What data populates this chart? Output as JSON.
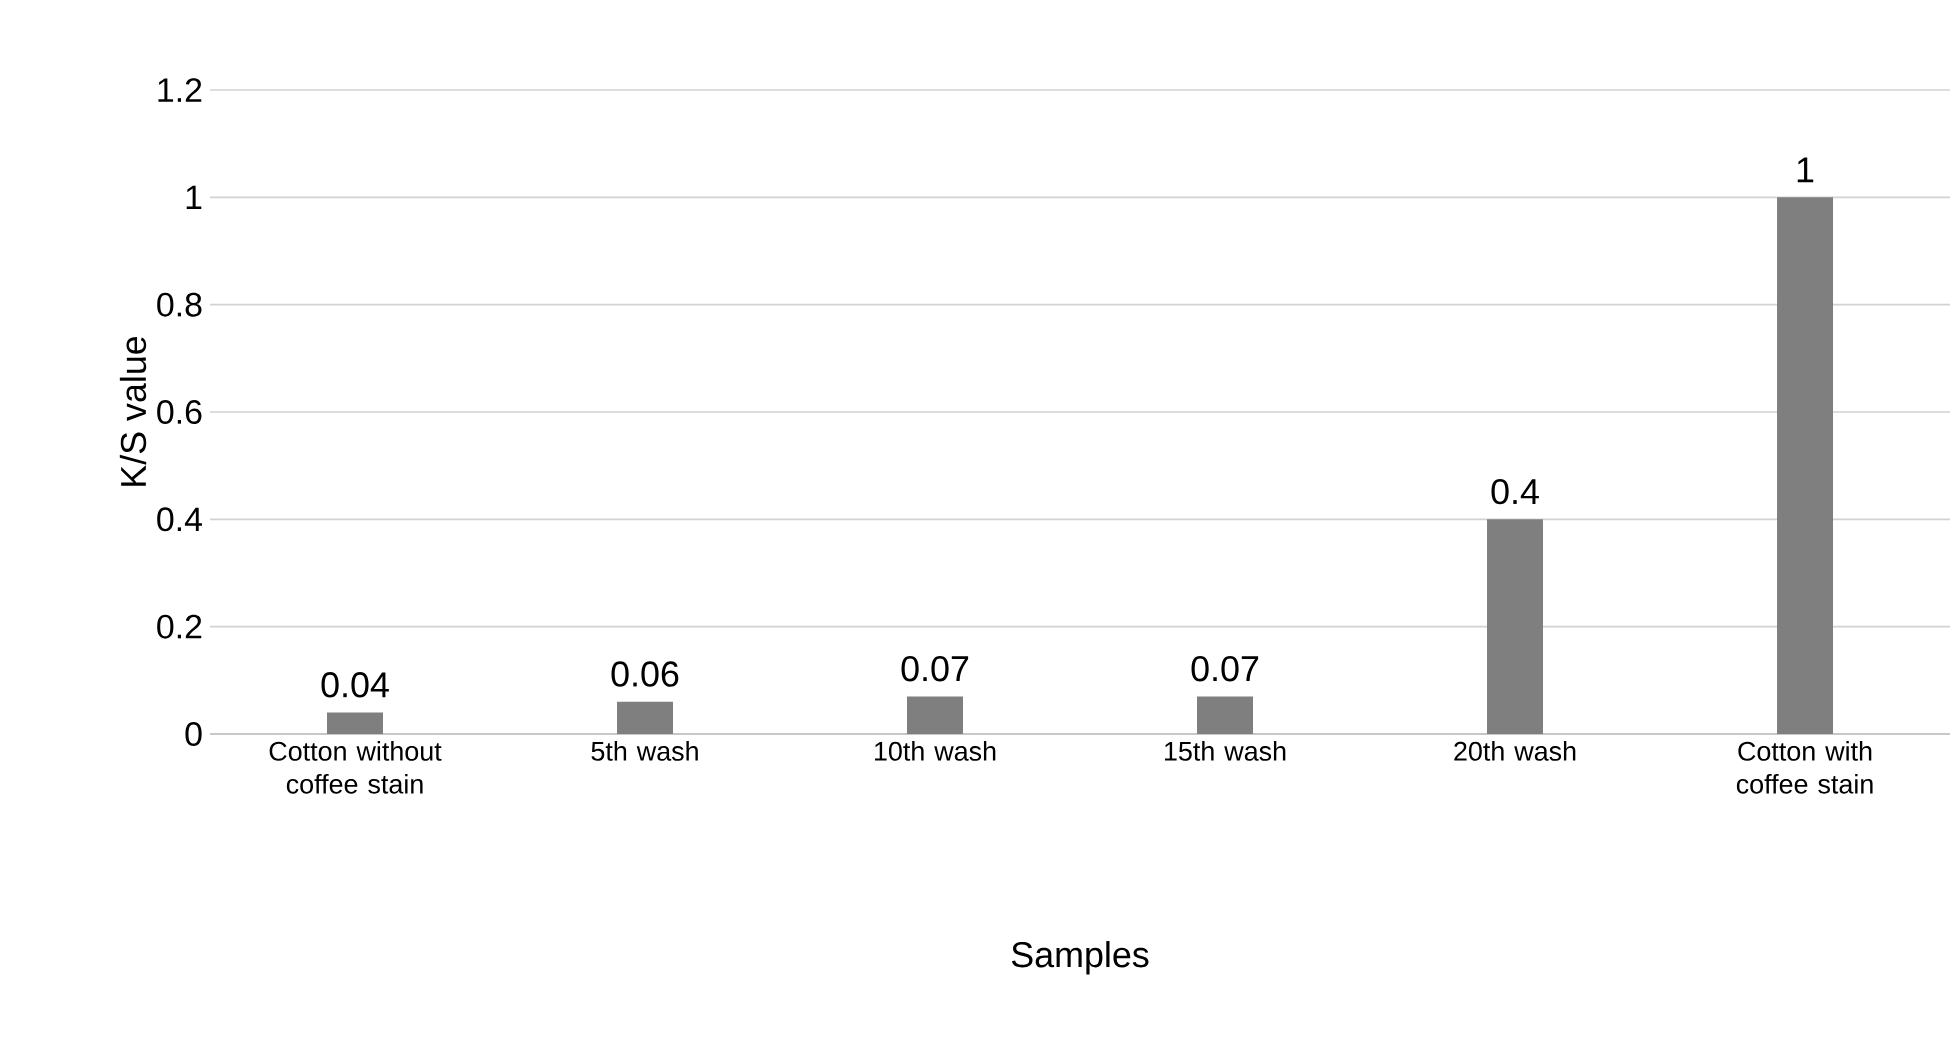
{
  "chart_data": {
    "type": "bar",
    "xlabel": "Samples",
    "ylabel": "K/S value",
    "categories": [
      "Cotton without coffee stain",
      "5th wash",
      "10th wash",
      "15th wash",
      "20th wash",
      "Cotton with coffee stain"
    ],
    "values": [
      0.04,
      0.06,
      0.07,
      0.07,
      0.4,
      1
    ],
    "color": "#7f7f7f",
    "ylim": [
      0,
      1.2
    ],
    "yticks": [
      0,
      0.2,
      0.4,
      0.6,
      0.8,
      1,
      1.2
    ],
    "grid": "y",
    "data_labels": true
  }
}
